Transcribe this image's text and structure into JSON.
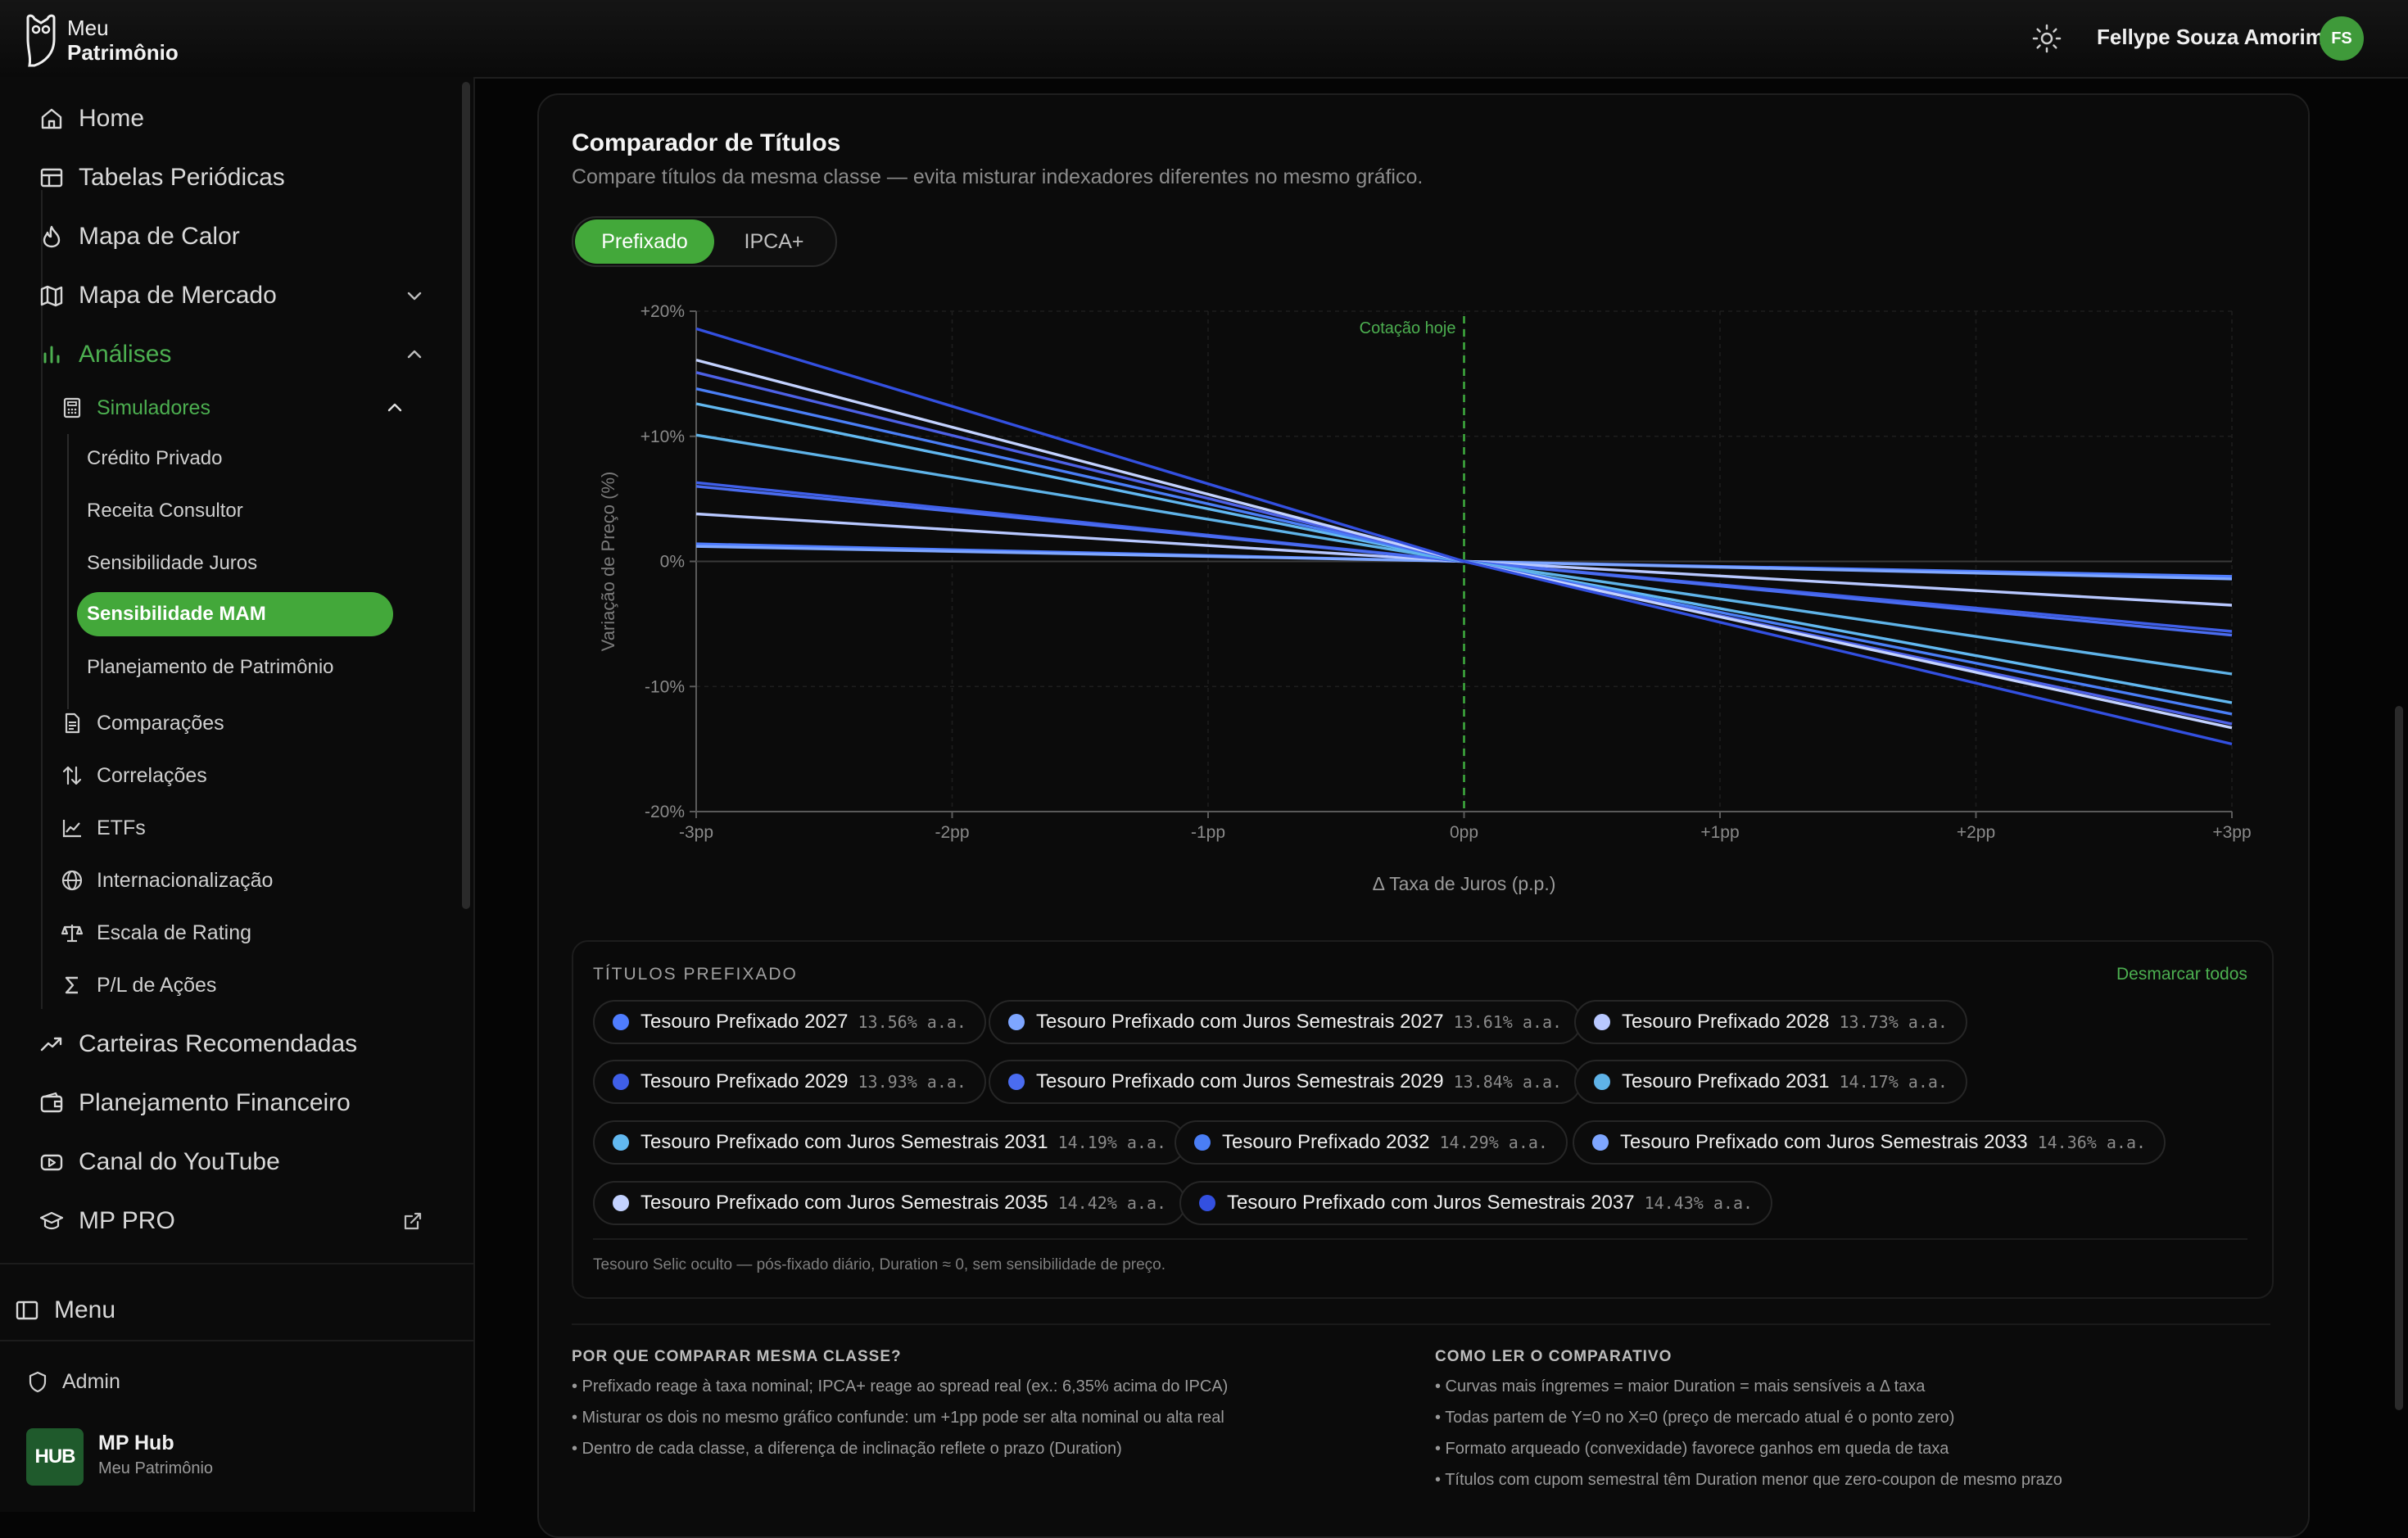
{
  "brand": {
    "line1": "Meu",
    "line2": "Patrimônio"
  },
  "user": {
    "name": "Fellype Souza Amorim",
    "initials": "FS"
  },
  "sidebar": {
    "items": [
      {
        "label": "Home"
      },
      {
        "label": "Tabelas Periódicas"
      },
      {
        "label": "Mapa de Calor"
      },
      {
        "label": "Mapa de Mercado"
      },
      {
        "label": "Análises"
      },
      {
        "label": "Carteiras Recomendadas"
      },
      {
        "label": "Planejamento Financeiro"
      },
      {
        "label": "Canal do YouTube"
      },
      {
        "label": "MP PRO"
      }
    ],
    "analises_children": [
      {
        "label": "Simuladores"
      },
      {
        "label": "Comparações"
      },
      {
        "label": "Correlações"
      },
      {
        "label": "ETFs"
      },
      {
        "label": "Internacionalização"
      },
      {
        "label": "Escala de Rating"
      },
      {
        "label": "P/L de Ações"
      }
    ],
    "simuladores_children": [
      {
        "label": "Crédito Privado"
      },
      {
        "label": "Receita Consultor"
      },
      {
        "label": "Sensibilidade Juros"
      },
      {
        "label": "Sensibilidade MAM"
      },
      {
        "label": "Planejamento de Patrimônio"
      }
    ],
    "menu_label": "Menu",
    "admin_label": "Admin",
    "hub": {
      "logo": "HUB",
      "name": "MP Hub",
      "sub": "Meu Patrimônio"
    }
  },
  "card": {
    "title": "Comparador de Títulos",
    "subtitle": "Compare títulos da mesma classe — evita misturar indexadores diferentes no mesmo gráfico.",
    "tabs": [
      {
        "label": "Prefixado"
      },
      {
        "label": "IPCA+"
      }
    ]
  },
  "chart_data": {
    "type": "line",
    "xlabel": "Δ Taxa de Juros (p.p.)",
    "ylabel": "Variação de Preço (%)",
    "xlim": [
      -3,
      3
    ],
    "ylim": [
      -20,
      20
    ],
    "x_ticks": [
      "-3pp",
      "-2pp",
      "-1pp",
      "0pp",
      "+1pp",
      "+2pp",
      "+3pp"
    ],
    "y_ticks": [
      "+20%",
      "+10%",
      "0%",
      "-10%",
      "-20%"
    ],
    "annotation": "Cotação hoje",
    "grid": true,
    "x": [
      -3,
      0,
      3
    ],
    "series": [
      {
        "values": [
          1.4,
          0,
          -1.2
        ],
        "color": "#4f7dff"
      },
      {
        "values": [
          1.2,
          0,
          -1.4
        ],
        "color": "#7ea6ff"
      },
      {
        "values": [
          3.8,
          0,
          -3.5
        ],
        "color": "#b8c8ff"
      },
      {
        "values": [
          6.3,
          0,
          -5.6
        ],
        "color": "#3f5fe8"
      },
      {
        "values": [
          6.0,
          0,
          -5.9
        ],
        "color": "#4a6cf0"
      },
      {
        "values": [
          10.1,
          0,
          -9.0
        ],
        "color": "#5fb3e8"
      },
      {
        "values": [
          12.6,
          0,
          -11.3
        ],
        "color": "#62b8f0"
      },
      {
        "values": [
          13.8,
          0,
          -12.2
        ],
        "color": "#4a7ef5"
      },
      {
        "values": [
          15.1,
          0,
          -13.0
        ],
        "color": "#4d61e6"
      },
      {
        "values": [
          16.1,
          0,
          -13.3
        ],
        "color": "#c3d2ff"
      },
      {
        "values": [
          18.6,
          0,
          -14.6
        ],
        "color": "#3350e0"
      }
    ]
  },
  "titles_panel": {
    "label": "TÍTULOS PREFIXADO",
    "uncheck_label": "Desmarcar todos",
    "chips": [
      {
        "name": "Tesouro Prefixado 2027",
        "rate": "13.56% a.a.",
        "color": "#4f7dff"
      },
      {
        "name": "Tesouro Prefixado com Juros Semestrais 2027",
        "rate": "13.61% a.a.",
        "color": "#7ea6ff"
      },
      {
        "name": "Tesouro Prefixado 2028",
        "rate": "13.73% a.a.",
        "color": "#b8c8ff"
      },
      {
        "name": "Tesouro Prefixado 2029",
        "rate": "13.93% a.a.",
        "color": "#3f5fe8"
      },
      {
        "name": "Tesouro Prefixado com Juros Semestrais 2029",
        "rate": "13.84% a.a.",
        "color": "#4a6cf0"
      },
      {
        "name": "Tesouro Prefixado 2031",
        "rate": "14.17% a.a.",
        "color": "#5fb3e8"
      },
      {
        "name": "Tesouro Prefixado com Juros Semestrais 2031",
        "rate": "14.19% a.a.",
        "color": "#62b8f0"
      },
      {
        "name": "Tesouro Prefixado 2032",
        "rate": "14.29% a.a.",
        "color": "#4a7ef5"
      },
      {
        "name": "Tesouro Prefixado com Juros Semestrais 2033",
        "rate": "14.36% a.a.",
        "color": "#7ea6ff"
      },
      {
        "name": "Tesouro Prefixado com Juros Semestrais 2035",
        "rate": "14.42% a.a.",
        "color": "#c3d2ff"
      },
      {
        "name": "Tesouro Prefixado com Juros Semestrais 2037",
        "rate": "14.43% a.a.",
        "color": "#3350e0"
      }
    ],
    "note": "Tesouro Selic oculto — pós-fixado diário, Duration ≈ 0, sem sensibilidade de preço."
  },
  "info": {
    "left_title": "POR QUE COMPARAR MESMA CLASSE?",
    "left_items": [
      "• Prefixado reage à taxa nominal; IPCA+ reage ao spread real (ex.: 6,35% acima do IPCA)",
      "• Misturar os dois no mesmo gráfico confunde: um +1pp pode ser alta nominal ou alta real",
      "• Dentro de cada classe, a diferença de inclinação reflete o prazo (Duration)"
    ],
    "right_title": "COMO LER O COMPARATIVO",
    "right_items": [
      "• Curvas mais íngremes = maior Duration = mais sensíveis a Δ taxa",
      "• Todas partem de Y=0 no X=0 (preço de mercado atual é o ponto zero)",
      "• Formato arqueado (convexidade) favorece ganhos em queda de taxa",
      "• Títulos com cupom semestral têm Duration menor que zero-coupon de mesmo prazo"
    ]
  },
  "icons": {
    "theme": "sun-icon",
    "home": "home-icon",
    "tables": "table-icon",
    "heat": "flame-icon",
    "market": "map-icon",
    "analyses": "bar-chart-icon",
    "sim": "calculator-icon",
    "compare": "document-icon",
    "corr": "arrows-updown-icon",
    "etf": "line-chart-icon",
    "intl": "globe-icon",
    "rating": "scale-icon",
    "pl": "sigma-icon",
    "recommend": "trending-up-icon",
    "plan": "wallet-icon",
    "youtube": "youtube-icon",
    "pro": "graduation-cap-icon",
    "external": "external-link-icon",
    "menu": "sidebar-panel-icon",
    "admin": "shield-icon"
  }
}
